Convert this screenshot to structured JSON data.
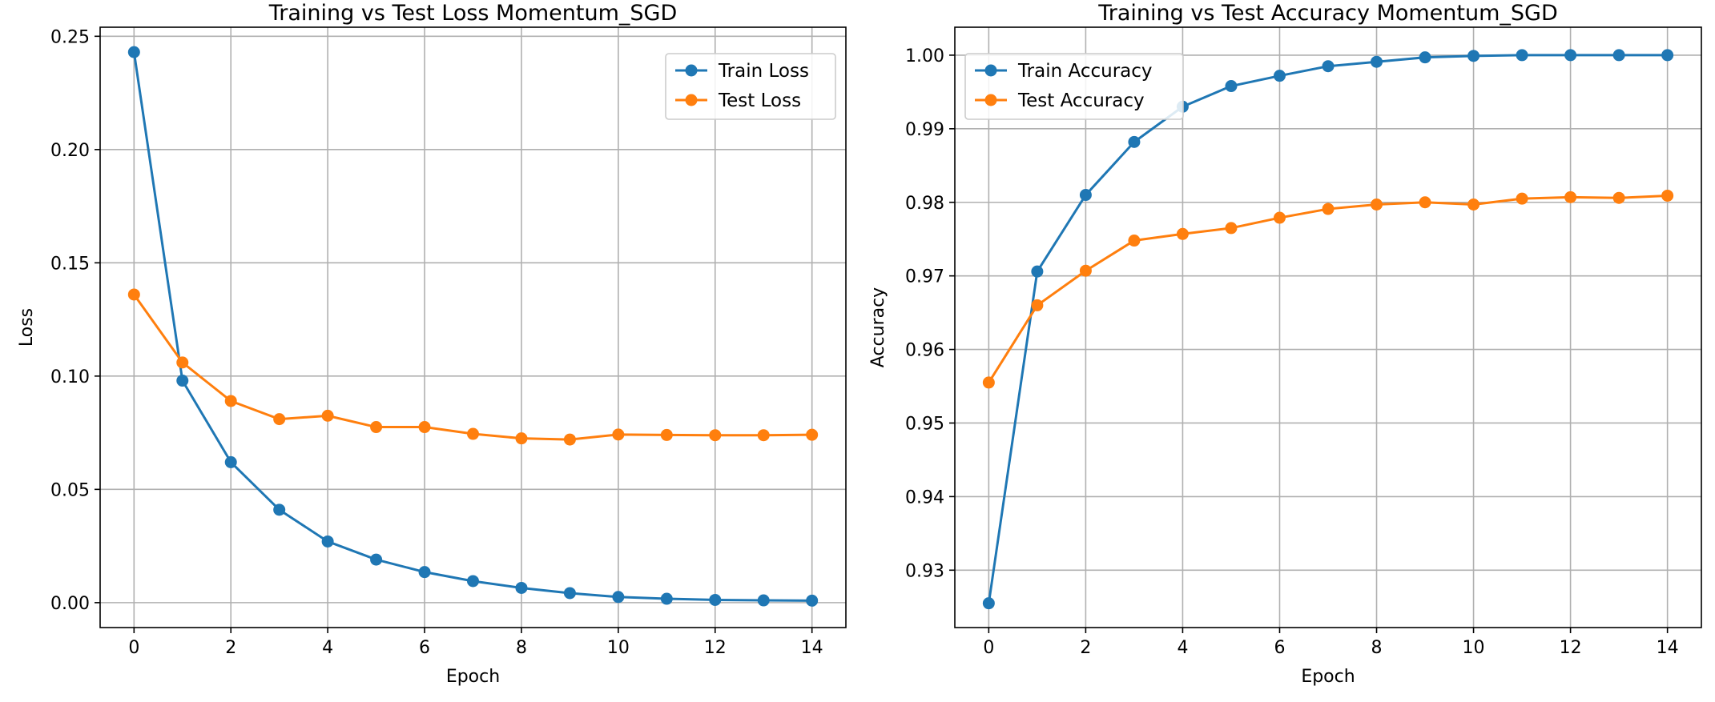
{
  "chart_data": [
    {
      "type": "line",
      "title": "Training vs Test Loss Momentum_SGD",
      "xlabel": "Epoch",
      "ylabel": "Loss",
      "x": [
        0,
        1,
        2,
        3,
        4,
        5,
        6,
        7,
        8,
        9,
        10,
        11,
        12,
        13,
        14
      ],
      "xlim": [
        -0.7,
        14.7
      ],
      "ylim": [
        -0.011,
        0.254
      ],
      "xticks": [
        0,
        2,
        4,
        6,
        8,
        10,
        12,
        14
      ],
      "yticks": [
        0.0,
        0.05,
        0.1,
        0.15,
        0.2,
        0.25
      ],
      "ytick_labels": [
        "0.00",
        "0.05",
        "0.10",
        "0.15",
        "0.20",
        "0.25"
      ],
      "grid": true,
      "legend": "upper right",
      "series": [
        {
          "name": "Train Loss",
          "color": "#1f77b4",
          "values": [
            0.243,
            0.098,
            0.062,
            0.041,
            0.027,
            0.019,
            0.0135,
            0.0095,
            0.0065,
            0.0042,
            0.0025,
            0.0017,
            0.0012,
            0.001,
            0.0009
          ]
        },
        {
          "name": "Test Loss",
          "color": "#ff7f0e",
          "values": [
            0.136,
            0.106,
            0.089,
            0.081,
            0.0825,
            0.0775,
            0.0775,
            0.0745,
            0.0725,
            0.072,
            0.0742,
            0.074,
            0.0739,
            0.0739,
            0.0741
          ]
        }
      ]
    },
    {
      "type": "line",
      "title": "Training vs Test Accuracy Momentum_SGD",
      "xlabel": "Epoch",
      "ylabel": "Accuracy",
      "x": [
        0,
        1,
        2,
        3,
        4,
        5,
        6,
        7,
        8,
        9,
        10,
        11,
        12,
        13,
        14
      ],
      "xlim": [
        -0.7,
        14.7
      ],
      "ylim": [
        0.9222,
        1.0038
      ],
      "xticks": [
        0,
        2,
        4,
        6,
        8,
        10,
        12,
        14
      ],
      "yticks": [
        0.93,
        0.94,
        0.95,
        0.96,
        0.97,
        0.98,
        0.99,
        1.0
      ],
      "ytick_labels": [
        "0.93",
        "0.94",
        "0.95",
        "0.96",
        "0.97",
        "0.98",
        "0.99",
        "1.00"
      ],
      "grid": true,
      "legend": "upper left",
      "series": [
        {
          "name": "Train Accuracy",
          "color": "#1f77b4",
          "values": [
            0.9255,
            0.9706,
            0.981,
            0.9882,
            0.993,
            0.9958,
            0.9972,
            0.9985,
            0.9991,
            0.9997,
            0.9999,
            1.0,
            1.0,
            1.0,
            1.0
          ]
        },
        {
          "name": "Test Accuracy",
          "color": "#ff7f0e",
          "values": [
            0.9555,
            0.966,
            0.9707,
            0.9748,
            0.9757,
            0.9765,
            0.9779,
            0.9791,
            0.9797,
            0.98,
            0.9797,
            0.9805,
            0.9807,
            0.9806,
            0.9809
          ]
        }
      ]
    }
  ]
}
